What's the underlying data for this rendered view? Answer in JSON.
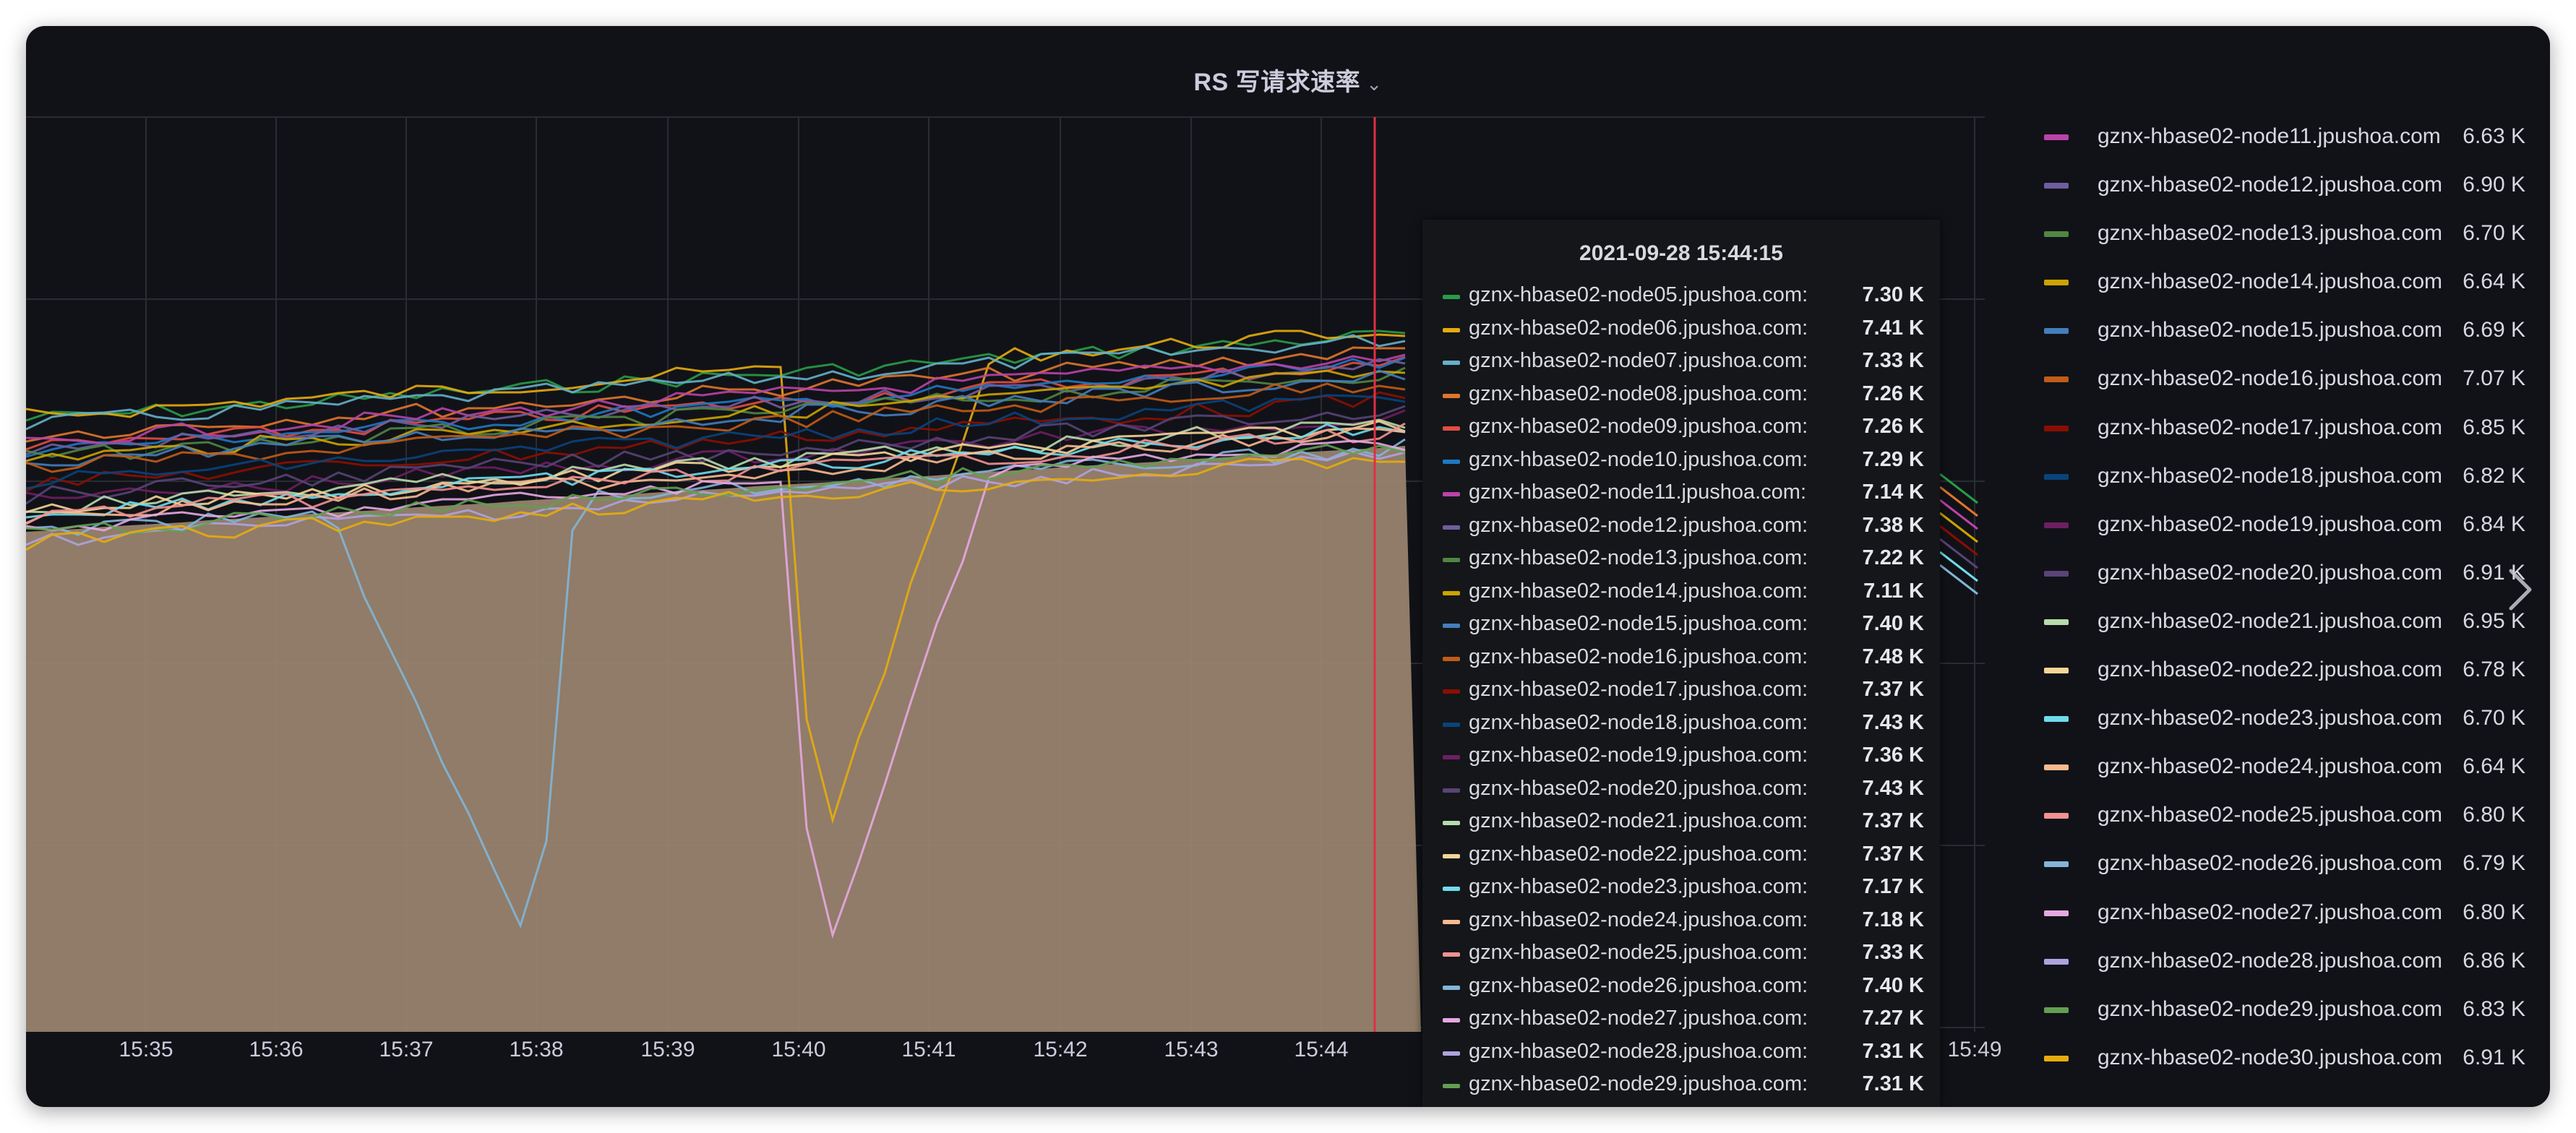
{
  "panel": {
    "title": "RS 写请求速率",
    "title_chevron": "⌄"
  },
  "colors": {
    "background": "#111217",
    "crosshair": "#e02f44",
    "area_fill": "#9b8670",
    "series": [
      "#299c46",
      "#e5ac0e",
      "#64b0c8",
      "#e0752d",
      "#e24d42",
      "#1f78c1",
      "#ba43a9",
      "#705da0",
      "#508642",
      "#cca300",
      "#447ebc",
      "#c15c17",
      "#890f02",
      "#0a437c",
      "#6d1f62",
      "#584477",
      "#b7dbab",
      "#f4d598",
      "#70dbed",
      "#f9ba8f",
      "#f29191",
      "#82b5d8",
      "#e5a8e2",
      "#aea2e0",
      "#629e51",
      "#e5ac0e"
    ]
  },
  "chart_data": {
    "type": "line",
    "title": "RS 写请求速率",
    "xlabel": "",
    "ylabel": "",
    "x_ticks": [
      "15:35",
      "15:36",
      "15:37",
      "15:38",
      "15:39",
      "15:40",
      "15:41",
      "15:42",
      "15:43",
      "15:44",
      "15:49"
    ],
    "hover_time": "2021-09-28 15:44:15",
    "series": [
      {
        "name": "gznx-hbase02-node05.jpushoa.com",
        "tooltip_value": "7.30 K"
      },
      {
        "name": "gznx-hbase02-node06.jpushoa.com",
        "tooltip_value": "7.41 K"
      },
      {
        "name": "gznx-hbase02-node07.jpushoa.com",
        "tooltip_value": "7.33 K"
      },
      {
        "name": "gznx-hbase02-node08.jpushoa.com",
        "tooltip_value": "7.26 K"
      },
      {
        "name": "gznx-hbase02-node09.jpushoa.com",
        "tooltip_value": "7.26 K"
      },
      {
        "name": "gznx-hbase02-node10.jpushoa.com",
        "tooltip_value": "7.29 K"
      },
      {
        "name": "gznx-hbase02-node11.jpushoa.com",
        "tooltip_value": "7.14 K",
        "legend_value": "6.63 K"
      },
      {
        "name": "gznx-hbase02-node12.jpushoa.com",
        "tooltip_value": "7.38 K",
        "legend_value": "6.90 K"
      },
      {
        "name": "gznx-hbase02-node13.jpushoa.com",
        "tooltip_value": "7.22 K",
        "legend_value": "6.70 K"
      },
      {
        "name": "gznx-hbase02-node14.jpushoa.com",
        "tooltip_value": "7.11 K",
        "legend_value": "6.64 K"
      },
      {
        "name": "gznx-hbase02-node15.jpushoa.com",
        "tooltip_value": "7.40 K",
        "legend_value": "6.69 K"
      },
      {
        "name": "gznx-hbase02-node16.jpushoa.com",
        "tooltip_value": "7.48 K",
        "legend_value": "7.07 K"
      },
      {
        "name": "gznx-hbase02-node17.jpushoa.com",
        "tooltip_value": "7.37 K",
        "legend_value": "6.85 K"
      },
      {
        "name": "gznx-hbase02-node18.jpushoa.com",
        "tooltip_value": "7.43 K",
        "legend_value": "6.82 K"
      },
      {
        "name": "gznx-hbase02-node19.jpushoa.com",
        "tooltip_value": "7.36 K",
        "legend_value": "6.84 K"
      },
      {
        "name": "gznx-hbase02-node20.jpushoa.com",
        "tooltip_value": "7.43 K",
        "legend_value": "6.91 K"
      },
      {
        "name": "gznx-hbase02-node21.jpushoa.com",
        "tooltip_value": "7.37 K",
        "legend_value": "6.95 K"
      },
      {
        "name": "gznx-hbase02-node22.jpushoa.com",
        "tooltip_value": "7.37 K",
        "legend_value": "6.78 K"
      },
      {
        "name": "gznx-hbase02-node23.jpushoa.com",
        "tooltip_value": "7.17 K",
        "legend_value": "6.70 K"
      },
      {
        "name": "gznx-hbase02-node24.jpushoa.com",
        "tooltip_value": "7.18 K",
        "legend_value": "6.64 K"
      },
      {
        "name": "gznx-hbase02-node25.jpushoa.com",
        "tooltip_value": "7.33 K",
        "legend_value": "6.80 K"
      },
      {
        "name": "gznx-hbase02-node26.jpushoa.com",
        "tooltip_value": "7.40 K",
        "legend_value": "6.79 K"
      },
      {
        "name": "gznx-hbase02-node27.jpushoa.com",
        "tooltip_value": "7.27 K",
        "legend_value": "6.80 K"
      },
      {
        "name": "gznx-hbase02-node28.jpushoa.com",
        "tooltip_value": "7.31 K",
        "legend_value": "6.86 K"
      },
      {
        "name": "gznx-hbase02-node29.jpushoa.com",
        "tooltip_value": "7.31 K",
        "legend_value": "6.83 K"
      },
      {
        "name": "gznx-hbase02-node30.jpushoa.com",
        "legend_value": "6.91 K"
      }
    ]
  },
  "tooltip": {
    "time": "2021-09-28 15:44:15",
    "rows": [
      {
        "label": "gznx-hbase02-node05.jpushoa.com:",
        "value": "7.30 K"
      },
      {
        "label": "gznx-hbase02-node06.jpushoa.com:",
        "value": "7.41 K"
      },
      {
        "label": "gznx-hbase02-node07.jpushoa.com:",
        "value": "7.33 K"
      },
      {
        "label": "gznx-hbase02-node08.jpushoa.com:",
        "value": "7.26 K"
      },
      {
        "label": "gznx-hbase02-node09.jpushoa.com:",
        "value": "7.26 K"
      },
      {
        "label": "gznx-hbase02-node10.jpushoa.com:",
        "value": "7.29 K"
      },
      {
        "label": "gznx-hbase02-node11.jpushoa.com:",
        "value": "7.14 K"
      },
      {
        "label": "gznx-hbase02-node12.jpushoa.com:",
        "value": "7.38 K"
      },
      {
        "label": "gznx-hbase02-node13.jpushoa.com:",
        "value": "7.22 K"
      },
      {
        "label": "gznx-hbase02-node14.jpushoa.com:",
        "value": "7.11 K"
      },
      {
        "label": "gznx-hbase02-node15.jpushoa.com:",
        "value": "7.40 K"
      },
      {
        "label": "gznx-hbase02-node16.jpushoa.com:",
        "value": "7.48 K"
      },
      {
        "label": "gznx-hbase02-node17.jpushoa.com:",
        "value": "7.37 K"
      },
      {
        "label": "gznx-hbase02-node18.jpushoa.com:",
        "value": "7.43 K"
      },
      {
        "label": "gznx-hbase02-node19.jpushoa.com:",
        "value": "7.36 K"
      },
      {
        "label": "gznx-hbase02-node20.jpushoa.com:",
        "value": "7.43 K"
      },
      {
        "label": "gznx-hbase02-node21.jpushoa.com:",
        "value": "7.37 K"
      },
      {
        "label": "gznx-hbase02-node22.jpushoa.com:",
        "value": "7.37 K"
      },
      {
        "label": "gznx-hbase02-node23.jpushoa.com:",
        "value": "7.17 K"
      },
      {
        "label": "gznx-hbase02-node24.jpushoa.com:",
        "value": "7.18 K"
      },
      {
        "label": "gznx-hbase02-node25.jpushoa.com:",
        "value": "7.33 K"
      },
      {
        "label": "gznx-hbase02-node26.jpushoa.com:",
        "value": "7.40 K"
      },
      {
        "label": "gznx-hbase02-node27.jpushoa.com:",
        "value": "7.27 K"
      },
      {
        "label": "gznx-hbase02-node28.jpushoa.com:",
        "value": "7.31 K"
      },
      {
        "label": "gznx-hbase02-node29.jpushoa.com:",
        "value": "7.31 K"
      }
    ]
  },
  "legend": {
    "rows": [
      {
        "label": "gznx-hbase02-node11.jpushoa.com",
        "value": "6.63 K"
      },
      {
        "label": "gznx-hbase02-node12.jpushoa.com",
        "value": "6.90 K"
      },
      {
        "label": "gznx-hbase02-node13.jpushoa.com",
        "value": "6.70 K"
      },
      {
        "label": "gznx-hbase02-node14.jpushoa.com",
        "value": "6.64 K"
      },
      {
        "label": "gznx-hbase02-node15.jpushoa.com",
        "value": "6.69 K"
      },
      {
        "label": "gznx-hbase02-node16.jpushoa.com",
        "value": "7.07 K"
      },
      {
        "label": "gznx-hbase02-node17.jpushoa.com",
        "value": "6.85 K"
      },
      {
        "label": "gznx-hbase02-node18.jpushoa.com",
        "value": "6.82 K"
      },
      {
        "label": "gznx-hbase02-node19.jpushoa.com",
        "value": "6.84 K"
      },
      {
        "label": "gznx-hbase02-node20.jpushoa.com",
        "value": "6.91 K"
      },
      {
        "label": "gznx-hbase02-node21.jpushoa.com",
        "value": "6.95 K"
      },
      {
        "label": "gznx-hbase02-node22.jpushoa.com",
        "value": "6.78 K"
      },
      {
        "label": "gznx-hbase02-node23.jpushoa.com",
        "value": "6.70 K"
      },
      {
        "label": "gznx-hbase02-node24.jpushoa.com",
        "value": "6.64 K"
      },
      {
        "label": "gznx-hbase02-node25.jpushoa.com",
        "value": "6.80 K"
      },
      {
        "label": "gznx-hbase02-node26.jpushoa.com",
        "value": "6.79 K"
      },
      {
        "label": "gznx-hbase02-node27.jpushoa.com",
        "value": "6.80 K"
      },
      {
        "label": "gznx-hbase02-node28.jpushoa.com",
        "value": "6.86 K"
      },
      {
        "label": "gznx-hbase02-node29.jpushoa.com",
        "value": "6.83 K"
      },
      {
        "label": "gznx-hbase02-node30.jpushoa.com",
        "value": "6.91 K"
      }
    ]
  },
  "next_icon": "chevron-right-icon"
}
